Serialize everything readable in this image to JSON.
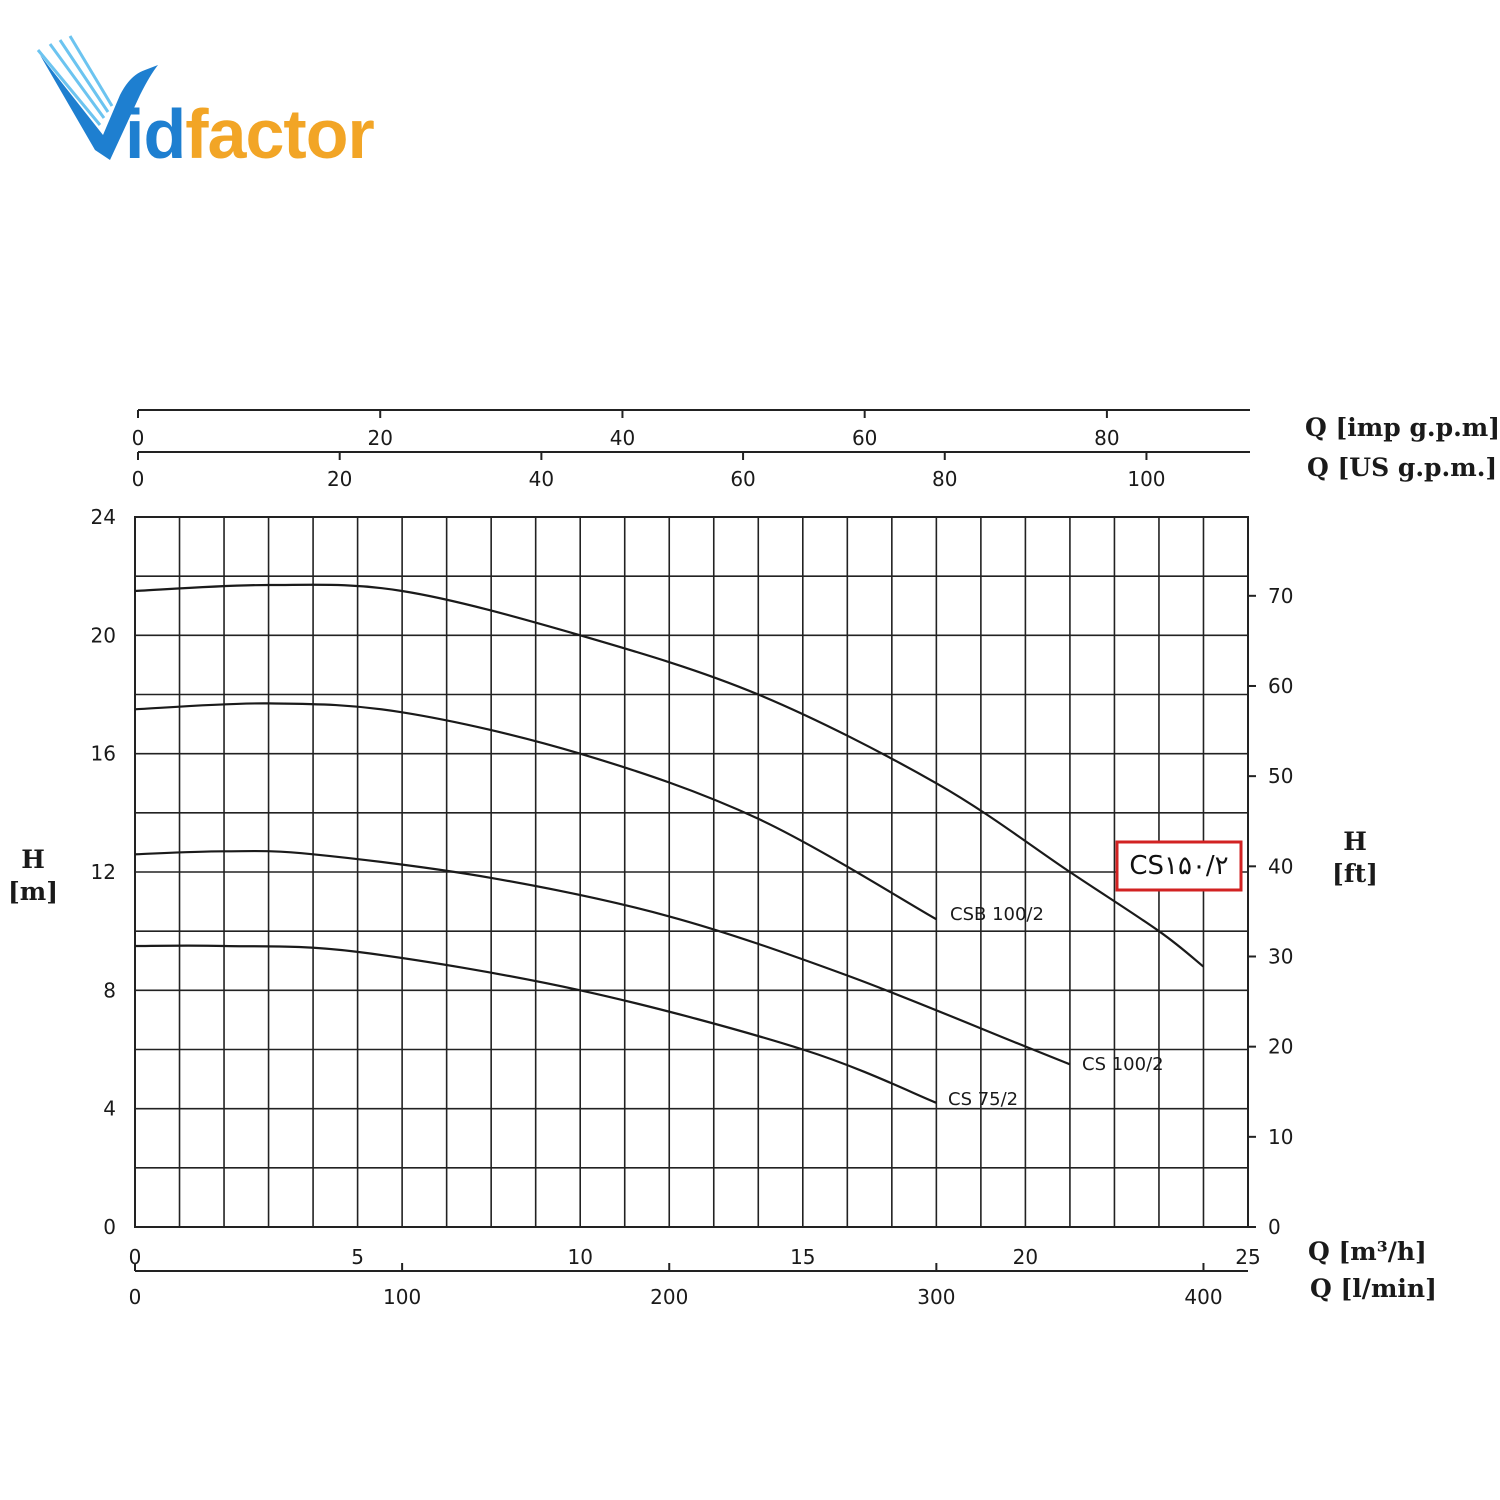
{
  "logo": {
    "brand": "Vidfactor",
    "text_blue": "id",
    "text_orange": "factor",
    "colors": {
      "blue": "#1e7fd0",
      "light_blue": "#6cc4f0",
      "orange": "#f2a526"
    }
  },
  "chart_data": {
    "type": "line",
    "title": "",
    "grid": true,
    "x": {
      "label": "Q [m³/h]",
      "range": [
        0,
        25
      ],
      "ticks": [
        0,
        5,
        10,
        15,
        20,
        25
      ]
    },
    "x_secondary": [
      {
        "label": "Q [l/min]",
        "position": "bottom",
        "range": [
          0,
          416.67
        ],
        "ticks": [
          0,
          100,
          200,
          300,
          400
        ]
      },
      {
        "label": "Q [US g.p.m.]",
        "position": "top",
        "range": [
          0,
          110.07
        ],
        "ticks": [
          0,
          20,
          40,
          60,
          80,
          100
        ]
      },
      {
        "label": "Q [imp g.p.m]",
        "position": "top",
        "range": [
          0,
          91.65
        ],
        "ticks": [
          0,
          20,
          40,
          60,
          80
        ]
      }
    ],
    "y": {
      "label": "H [m]",
      "label_line1": "H",
      "label_line2": "[m]",
      "range": [
        0,
        24
      ],
      "ticks": [
        0,
        4,
        8,
        12,
        16,
        20,
        24
      ]
    },
    "y_secondary": {
      "label": "H [ft]",
      "label_line1": "H",
      "label_line2": "[ft]",
      "range": [
        0,
        78.74
      ],
      "ticks": [
        0,
        10,
        20,
        30,
        40,
        50,
        60,
        70
      ]
    },
    "series": [
      {
        "name": "CS150/2",
        "label": "CS۱۵۰/۲",
        "highlighted": true,
        "x": [
          0,
          3,
          6,
          10,
          14,
          18,
          21,
          23,
          24
        ],
        "y": [
          21.5,
          21.7,
          21.5,
          20.0,
          18.0,
          15.0,
          12.0,
          10.0,
          8.8
        ]
      },
      {
        "name": "CSB 100/2",
        "label": "CSB 100/2",
        "x": [
          0,
          3,
          6,
          10,
          14,
          18
        ],
        "y": [
          17.5,
          17.7,
          17.4,
          16.0,
          13.8,
          10.4
        ]
      },
      {
        "name": "CS 100/2",
        "label": "CS 100/2",
        "x": [
          0,
          2,
          4,
          8,
          12,
          16,
          20,
          21
        ],
        "y": [
          12.6,
          12.7,
          12.6,
          11.8,
          10.5,
          8.5,
          6.1,
          5.5
        ]
      },
      {
        "name": "CS 75/2",
        "label": "CS 75/2",
        "x": [
          0,
          2,
          5,
          10,
          15,
          18
        ],
        "y": [
          9.5,
          9.5,
          9.3,
          8.0,
          6.0,
          4.2
        ]
      }
    ]
  }
}
